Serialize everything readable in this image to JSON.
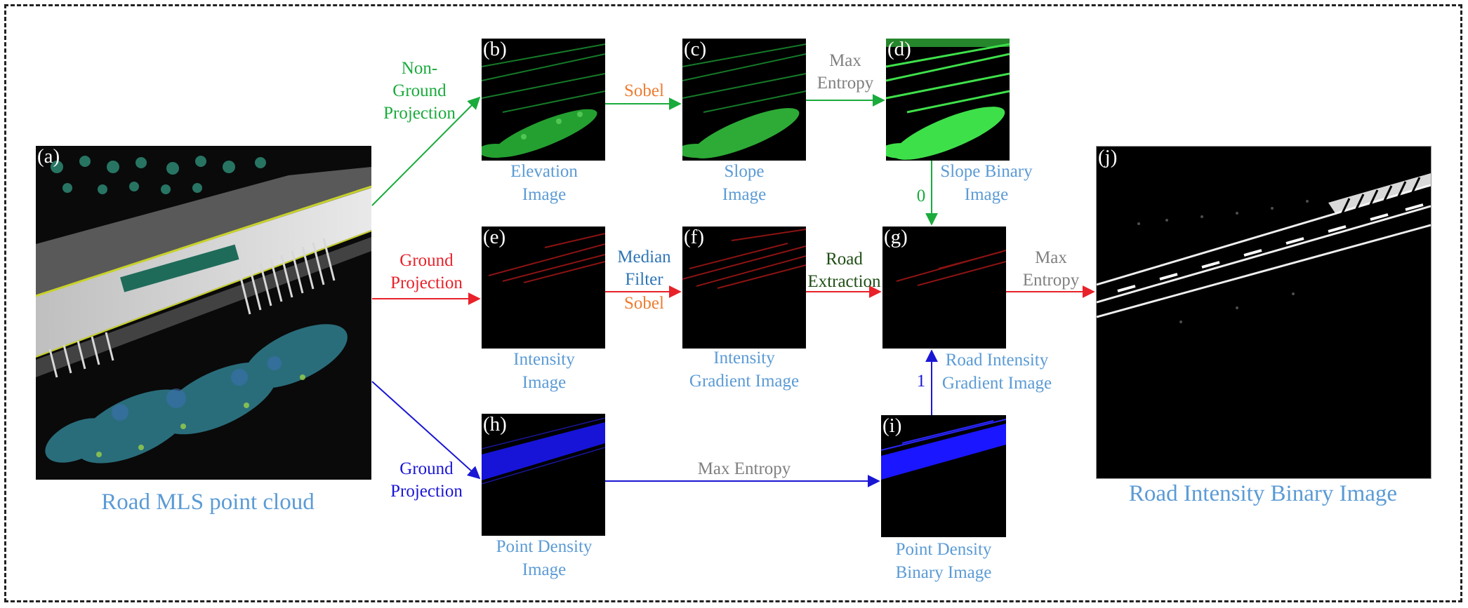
{
  "panels": {
    "a": {
      "label": "(a)",
      "caption": "Road MLS point cloud"
    },
    "b": {
      "label": "(b)",
      "caption_1": "Elevation",
      "caption_2": "Image"
    },
    "c": {
      "label": "(c)",
      "caption_1": "Slope",
      "caption_2": "Image"
    },
    "d": {
      "label": "(d)",
      "caption_1": "Slope Binary",
      "caption_2": "Image"
    },
    "e": {
      "label": "(e)",
      "caption_1": "Intensity",
      "caption_2": "Image"
    },
    "f": {
      "label": "(f)",
      "caption_1": "Intensity",
      "caption_2": "Gradient Image"
    },
    "g": {
      "label": "(g)",
      "caption_1": "Road Intensity",
      "caption_2": "Gradient Image"
    },
    "h": {
      "label": "(h)",
      "caption_1": "Point Density",
      "caption_2": "Image"
    },
    "i": {
      "label": "(i)",
      "caption_1": "Point Density",
      "caption_2": "Binary Image"
    },
    "j": {
      "label": "(j)",
      "caption": "Road Intensity Binary Image"
    }
  },
  "edges": {
    "non_ground_projection": [
      "Non-",
      "Ground",
      "Projection"
    ],
    "ground_projection_red": [
      "Ground",
      "Projection"
    ],
    "ground_projection_blue": [
      "Ground",
      "Projection"
    ],
    "sobel_bc": "Sobel",
    "max_entropy_cd": [
      "Max",
      "Entropy"
    ],
    "median_filter": [
      "Median",
      "Filter"
    ],
    "sobel_ef": "Sobel",
    "road_extraction": [
      "Road",
      "Extraction"
    ],
    "max_entropy_gj": [
      "Max",
      "Entropy"
    ],
    "max_entropy_hi": "Max Entropy",
    "zero": "0",
    "one": "1"
  },
  "colors": {
    "green": "#1aab3c",
    "red": "#e8222a",
    "blue": "#1a16d4",
    "caption": "#5b9bd5",
    "orange": "#ed7d31",
    "gray": "#808080"
  }
}
